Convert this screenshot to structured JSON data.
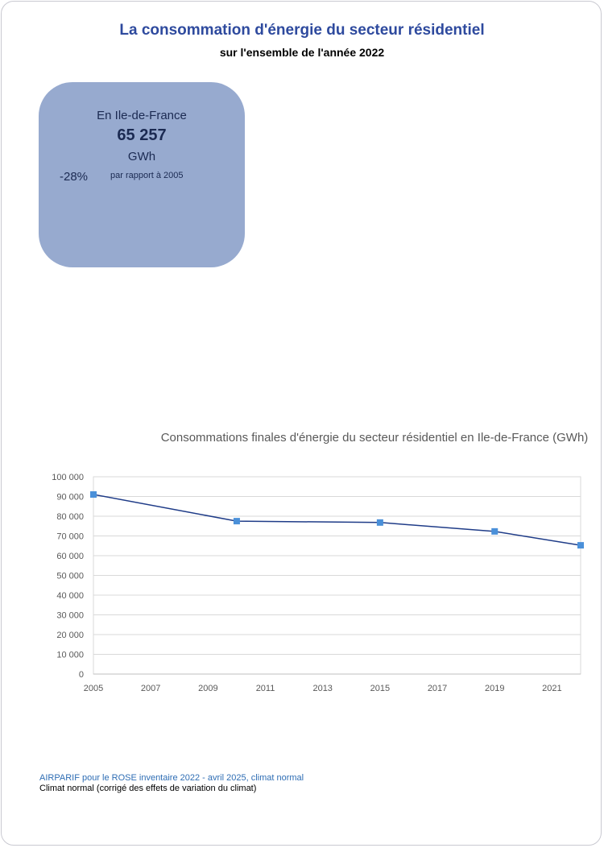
{
  "header": {
    "title": "La consommation d'énergie du secteur résidentiel",
    "subtitle": "sur l'ensemble de l'année 2022"
  },
  "kpi": {
    "region": "En Ile-de-France",
    "value": "65 257",
    "unit": "GWh",
    "change": "-28%",
    "change_note": "par rapport à 2005",
    "card_color": "#97aacf"
  },
  "footer": {
    "source": "AIRPARIF pour le ROSE inventaire 2022 - avril 2025, climat normal",
    "climate_note": "Climat normal (corrigé des effets de variation du climat)"
  },
  "chart_data": {
    "type": "line",
    "title": "Consommations finales d'énergie du secteur résidentiel en Ile-de-France (GWh)",
    "xlabel": "",
    "ylabel": "",
    "x_ticks": [
      2005,
      2007,
      2009,
      2011,
      2013,
      2015,
      2017,
      2019,
      2021
    ],
    "xlim": [
      2005,
      2022
    ],
    "y_ticks": [
      "0",
      "10 000",
      "20 000",
      "30 000",
      "40 000",
      "50 000",
      "60 000",
      "70 000",
      "80 000",
      "90 000",
      "100 000"
    ],
    "ylim": [
      0,
      100000
    ],
    "grid": true,
    "legend": "none",
    "series": [
      {
        "color": "#1f3c88",
        "marker_color": "#4a90d9",
        "points": [
          {
            "x": 2005,
            "y": 91000
          },
          {
            "x": 2010,
            "y": 77500
          },
          {
            "x": 2015,
            "y": 76800
          },
          {
            "x": 2019,
            "y": 72300
          },
          {
            "x": 2022,
            "y": 65257
          }
        ]
      }
    ]
  }
}
